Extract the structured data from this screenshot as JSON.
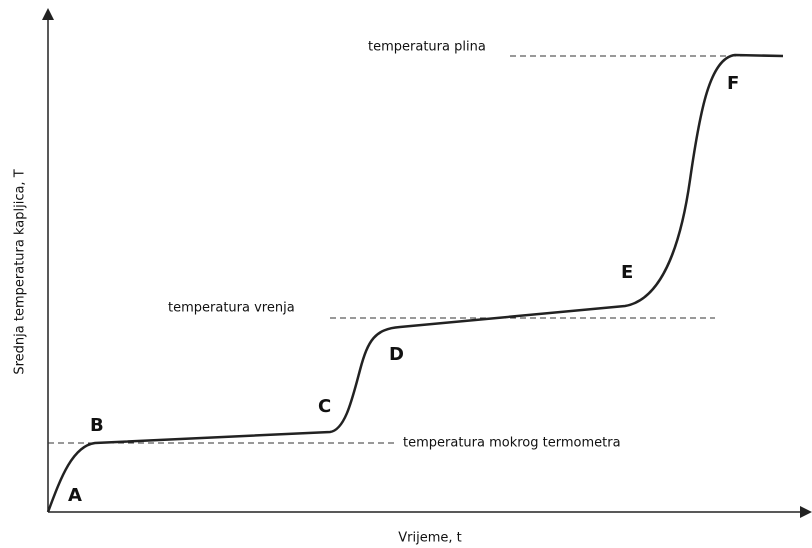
{
  "axes": {
    "y_label": "Srednja temperatura kapljica, T",
    "x_label": "Vrijeme, t"
  },
  "reference_lines": [
    "temperatura plina",
    "temperatura vrenja",
    "temperatura mokrog termometra"
  ],
  "points": [
    "A",
    "B",
    "C",
    "D",
    "E",
    "F"
  ]
}
